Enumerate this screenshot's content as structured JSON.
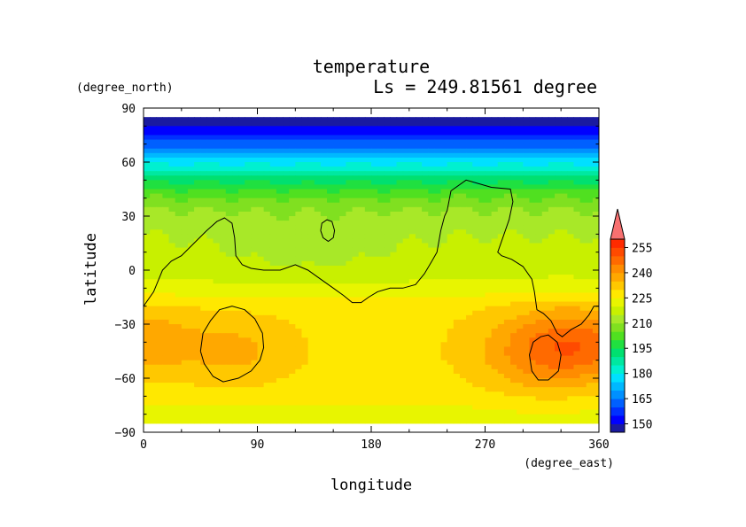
{
  "chart_data": {
    "type": "heatmap",
    "title": "temperature",
    "subtitle": "Ls = 249.81561 degree",
    "xlabel": "longitude",
    "ylabel": "latitude",
    "x_units": "(degree_east)",
    "y_units": "(degree_north)",
    "xlim": [
      0,
      360
    ],
    "ylim": [
      -90,
      90
    ],
    "x_ticks": [
      0,
      90,
      180,
      270,
      360
    ],
    "y_ticks": [
      90,
      60,
      30,
      0,
      -30,
      -60,
      -90
    ],
    "x_tick_labels": [
      "0",
      "90",
      "180",
      "270",
      "360"
    ],
    "y_tick_labels": [
      "90",
      "60",
      "30",
      "0",
      "−30",
      "−60",
      "−90"
    ],
    "data_extent": {
      "lat_max": 85,
      "lat_min": -85
    },
    "lat_profile": [
      {
        "lat": 85,
        "value": 145
      },
      {
        "lat": 75,
        "value": 155
      },
      {
        "lat": 68,
        "value": 165
      },
      {
        "lat": 60,
        "value": 178
      },
      {
        "lat": 52,
        "value": 190
      },
      {
        "lat": 45,
        "value": 200
      },
      {
        "lat": 38,
        "value": 207
      },
      {
        "lat": 30,
        "value": 212
      },
      {
        "lat": 15,
        "value": 216
      },
      {
        "lat": 0,
        "value": 218
      },
      {
        "lat": -10,
        "value": 222
      },
      {
        "lat": -20,
        "value": 228
      },
      {
        "lat": -30,
        "value": 229
      },
      {
        "lat": -50,
        "value": 229
      },
      {
        "lat": -65,
        "value": 228
      },
      {
        "lat": -78,
        "value": 224
      },
      {
        "lat": -85,
        "value": 222
      }
    ],
    "hot_spots": [
      {
        "lon": 0,
        "lat": -40,
        "amplitude": 10,
        "rlon": 45,
        "rlat": 18
      },
      {
        "lon": 360,
        "lat": -40,
        "amplitude": 10,
        "rlon": 45,
        "rlat": 18
      },
      {
        "lon": 320,
        "lat": -45,
        "amplitude": 16,
        "rlon": 50,
        "rlat": 22
      },
      {
        "lon": 75,
        "lat": -45,
        "amplitude": 7,
        "rlon": 40,
        "rlat": 18
      },
      {
        "lon": 130,
        "lat": 10,
        "amplitude": -3,
        "rlon": 80,
        "rlat": 20
      }
    ],
    "colorbar": {
      "levels": [
        145,
        150,
        155,
        160,
        165,
        170,
        175,
        180,
        185,
        190,
        195,
        200,
        205,
        210,
        215,
        220,
        225,
        230,
        235,
        240,
        245,
        250,
        255,
        260
      ],
      "tick_values": [
        150,
        165,
        180,
        195,
        210,
        225,
        240,
        255
      ],
      "tick_labels": [
        "150",
        "165",
        "180",
        "195",
        "210",
        "225",
        "240",
        "255"
      ],
      "colors": [
        "#1a1aa0",
        "#0000ff",
        "#0030ff",
        "#0060ff",
        "#0090ff",
        "#00b8ff",
        "#00e0ff",
        "#00f0d0",
        "#00e8a0",
        "#00e070",
        "#20e040",
        "#50e020",
        "#80e020",
        "#a8e828",
        "#c8f000",
        "#e8f500",
        "#ffe800",
        "#ffc800",
        "#ffa800",
        "#ff8c00",
        "#ff6a00",
        "#ff4a00",
        "#ff2a00",
        "#f87070"
      ],
      "extend": "max"
    },
    "contours": [
      {
        "name": "topography",
        "points": [
          [
            0,
            -20
          ],
          [
            8,
            -12
          ],
          [
            15,
            0
          ],
          [
            22,
            5
          ],
          [
            30,
            8
          ],
          [
            40,
            15
          ],
          [
            50,
            22
          ],
          [
            58,
            27
          ],
          [
            64,
            29
          ],
          [
            70,
            26
          ],
          [
            72,
            18
          ],
          [
            73,
            8
          ],
          [
            78,
            3
          ],
          [
            85,
            1
          ],
          [
            95,
            0
          ],
          [
            108,
            0
          ],
          [
            120,
            3
          ],
          [
            130,
            0
          ],
          [
            140,
            -5
          ],
          [
            150,
            -10
          ],
          [
            158,
            -14
          ],
          [
            165,
            -18
          ],
          [
            172,
            -18
          ],
          [
            178,
            -15
          ],
          [
            185,
            -12
          ],
          [
            195,
            -10
          ],
          [
            205,
            -10
          ],
          [
            215,
            -8
          ],
          [
            222,
            -2
          ],
          [
            228,
            5
          ],
          [
            232,
            10
          ],
          [
            235,
            22
          ],
          [
            238,
            30
          ],
          [
            240,
            33
          ],
          [
            243,
            44
          ],
          [
            255,
            50
          ],
          [
            265,
            48
          ],
          [
            275,
            46
          ],
          [
            290,
            45
          ],
          [
            292,
            38
          ],
          [
            289,
            28
          ],
          [
            284,
            18
          ],
          [
            280,
            10
          ],
          [
            283,
            8
          ],
          [
            291,
            6
          ],
          [
            300,
            2
          ],
          [
            307,
            -5
          ],
          [
            309,
            -12
          ],
          [
            311,
            -22
          ],
          [
            316,
            -24
          ],
          [
            322,
            -28
          ],
          [
            327,
            -35
          ],
          [
            331,
            -37
          ],
          [
            338,
            -33
          ],
          [
            346,
            -30
          ],
          [
            352,
            -25
          ],
          [
            356,
            -20
          ],
          [
            360,
            -20
          ]
        ]
      },
      {
        "name": "island",
        "points": [
          [
            140,
            22
          ],
          [
            141,
            26
          ],
          [
            145,
            28
          ],
          [
            149,
            27
          ],
          [
            151,
            22
          ],
          [
            150,
            18
          ],
          [
            146,
            16
          ],
          [
            142,
            18
          ],
          [
            140,
            22
          ]
        ]
      },
      {
        "name": "basin-west",
        "points": [
          [
            45,
            -45
          ],
          [
            47,
            -35
          ],
          [
            53,
            -28
          ],
          [
            60,
            -22
          ],
          [
            70,
            -20
          ],
          [
            80,
            -22
          ],
          [
            88,
            -27
          ],
          [
            94,
            -35
          ],
          [
            95,
            -43
          ],
          [
            92,
            -50
          ],
          [
            85,
            -56
          ],
          [
            75,
            -60
          ],
          [
            63,
            -62
          ],
          [
            55,
            -59
          ],
          [
            48,
            -52
          ],
          [
            45,
            -45
          ]
        ]
      },
      {
        "name": "basin-east",
        "points": [
          [
            305,
            -47
          ],
          [
            308,
            -40
          ],
          [
            314,
            -37
          ],
          [
            320,
            -36
          ],
          [
            327,
            -40
          ],
          [
            330,
            -47
          ],
          [
            328,
            -56
          ],
          [
            320,
            -61
          ],
          [
            312,
            -61
          ],
          [
            307,
            -56
          ],
          [
            305,
            -47
          ]
        ]
      }
    ]
  }
}
